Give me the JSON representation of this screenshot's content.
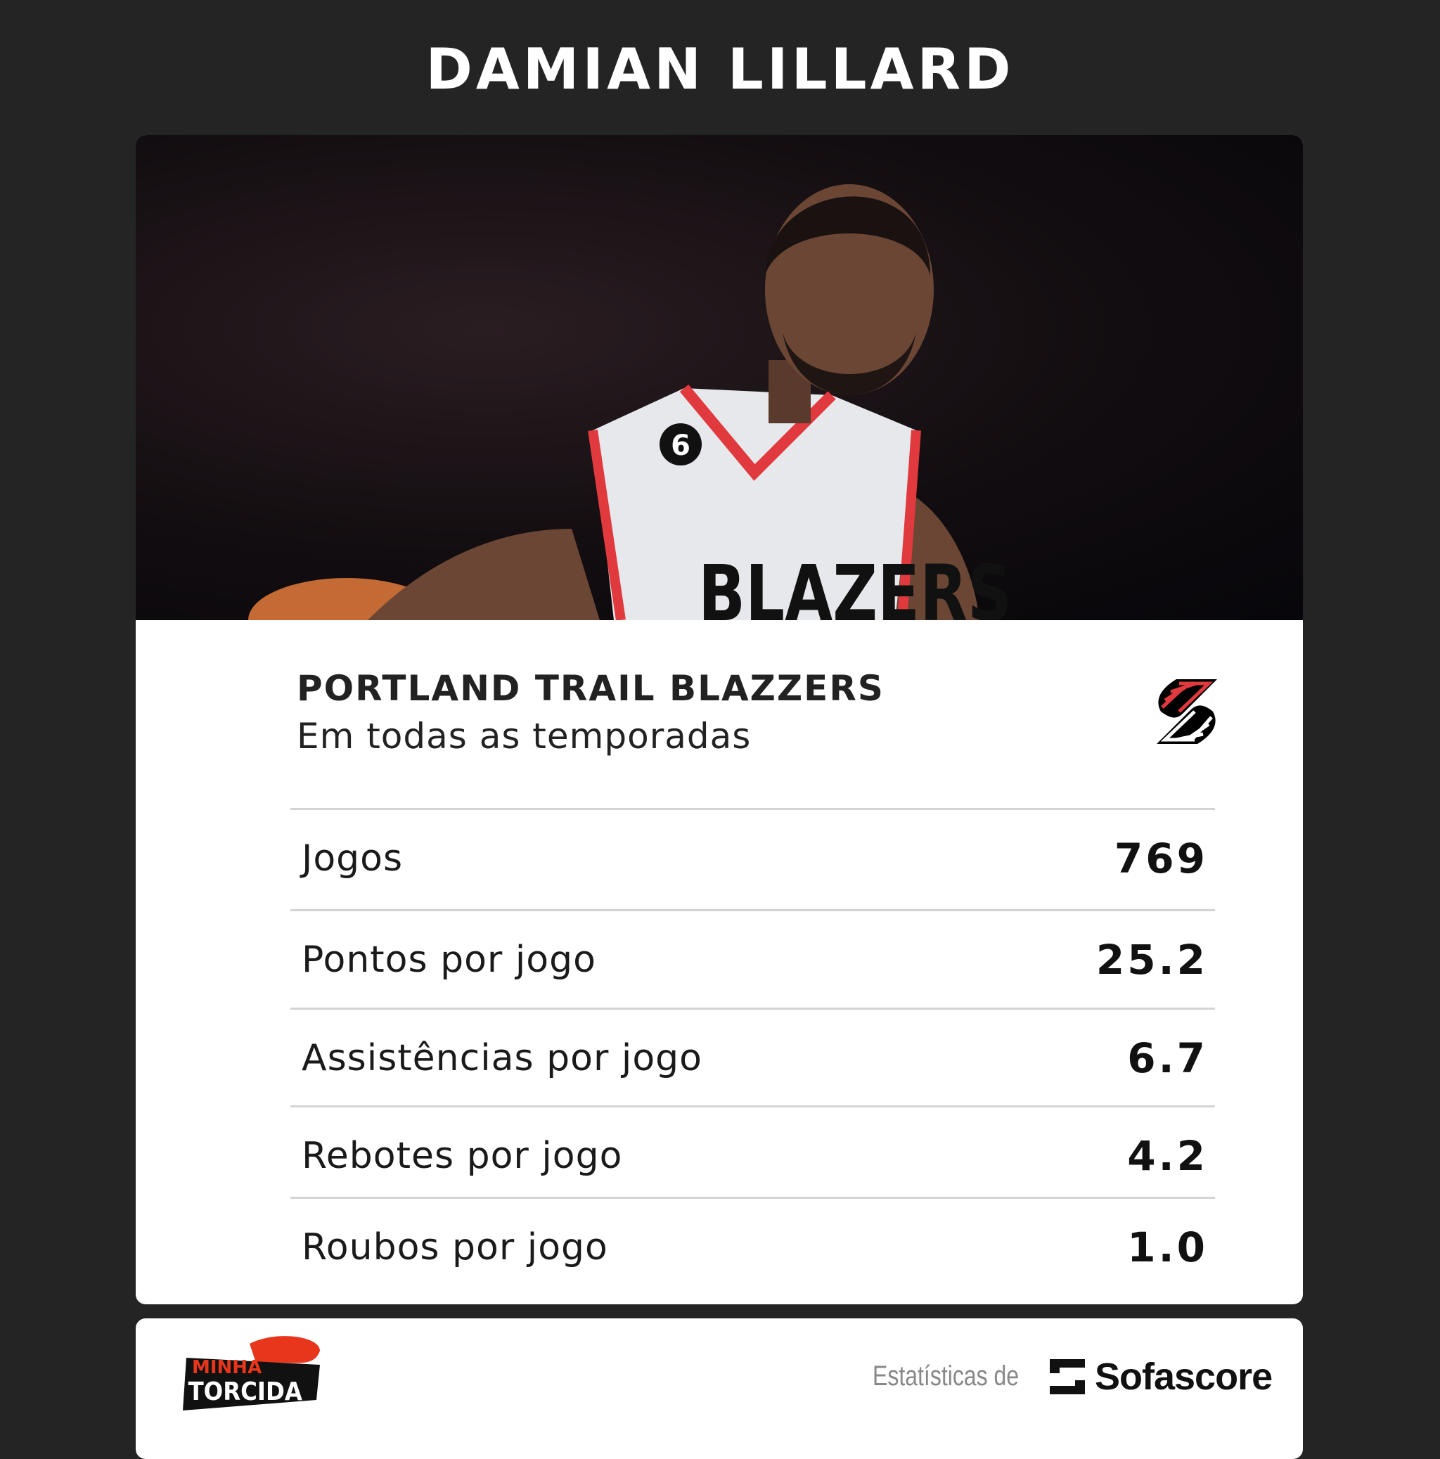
{
  "header": {
    "title": "DAMIAN LILLARD"
  },
  "photo": {
    "jersey_text": "BLAZERS",
    "jersey_number": "6"
  },
  "team": {
    "name": "PORTLAND TRAIL BLAZZERS",
    "subtitle": "Em todas as temporadas",
    "logo_icon": "trail-blazers-pinwheel-icon",
    "colors": {
      "red": "#e03a3e",
      "black": "#000000"
    }
  },
  "stats": [
    {
      "label": "Jogos",
      "value": "769"
    },
    {
      "label": "Pontos por jogo",
      "value": "25.2"
    },
    {
      "label": "Assistências por jogo",
      "value": "6.7"
    },
    {
      "label": "Rebotes por jogo",
      "value": "4.2"
    },
    {
      "label": "Roubos por jogo",
      "value": "1.0"
    }
  ],
  "footer": {
    "brand_logo": "MINHA TORCIDA",
    "stats_by": "Estatísticas de",
    "stats_provider": "Sofascore"
  }
}
